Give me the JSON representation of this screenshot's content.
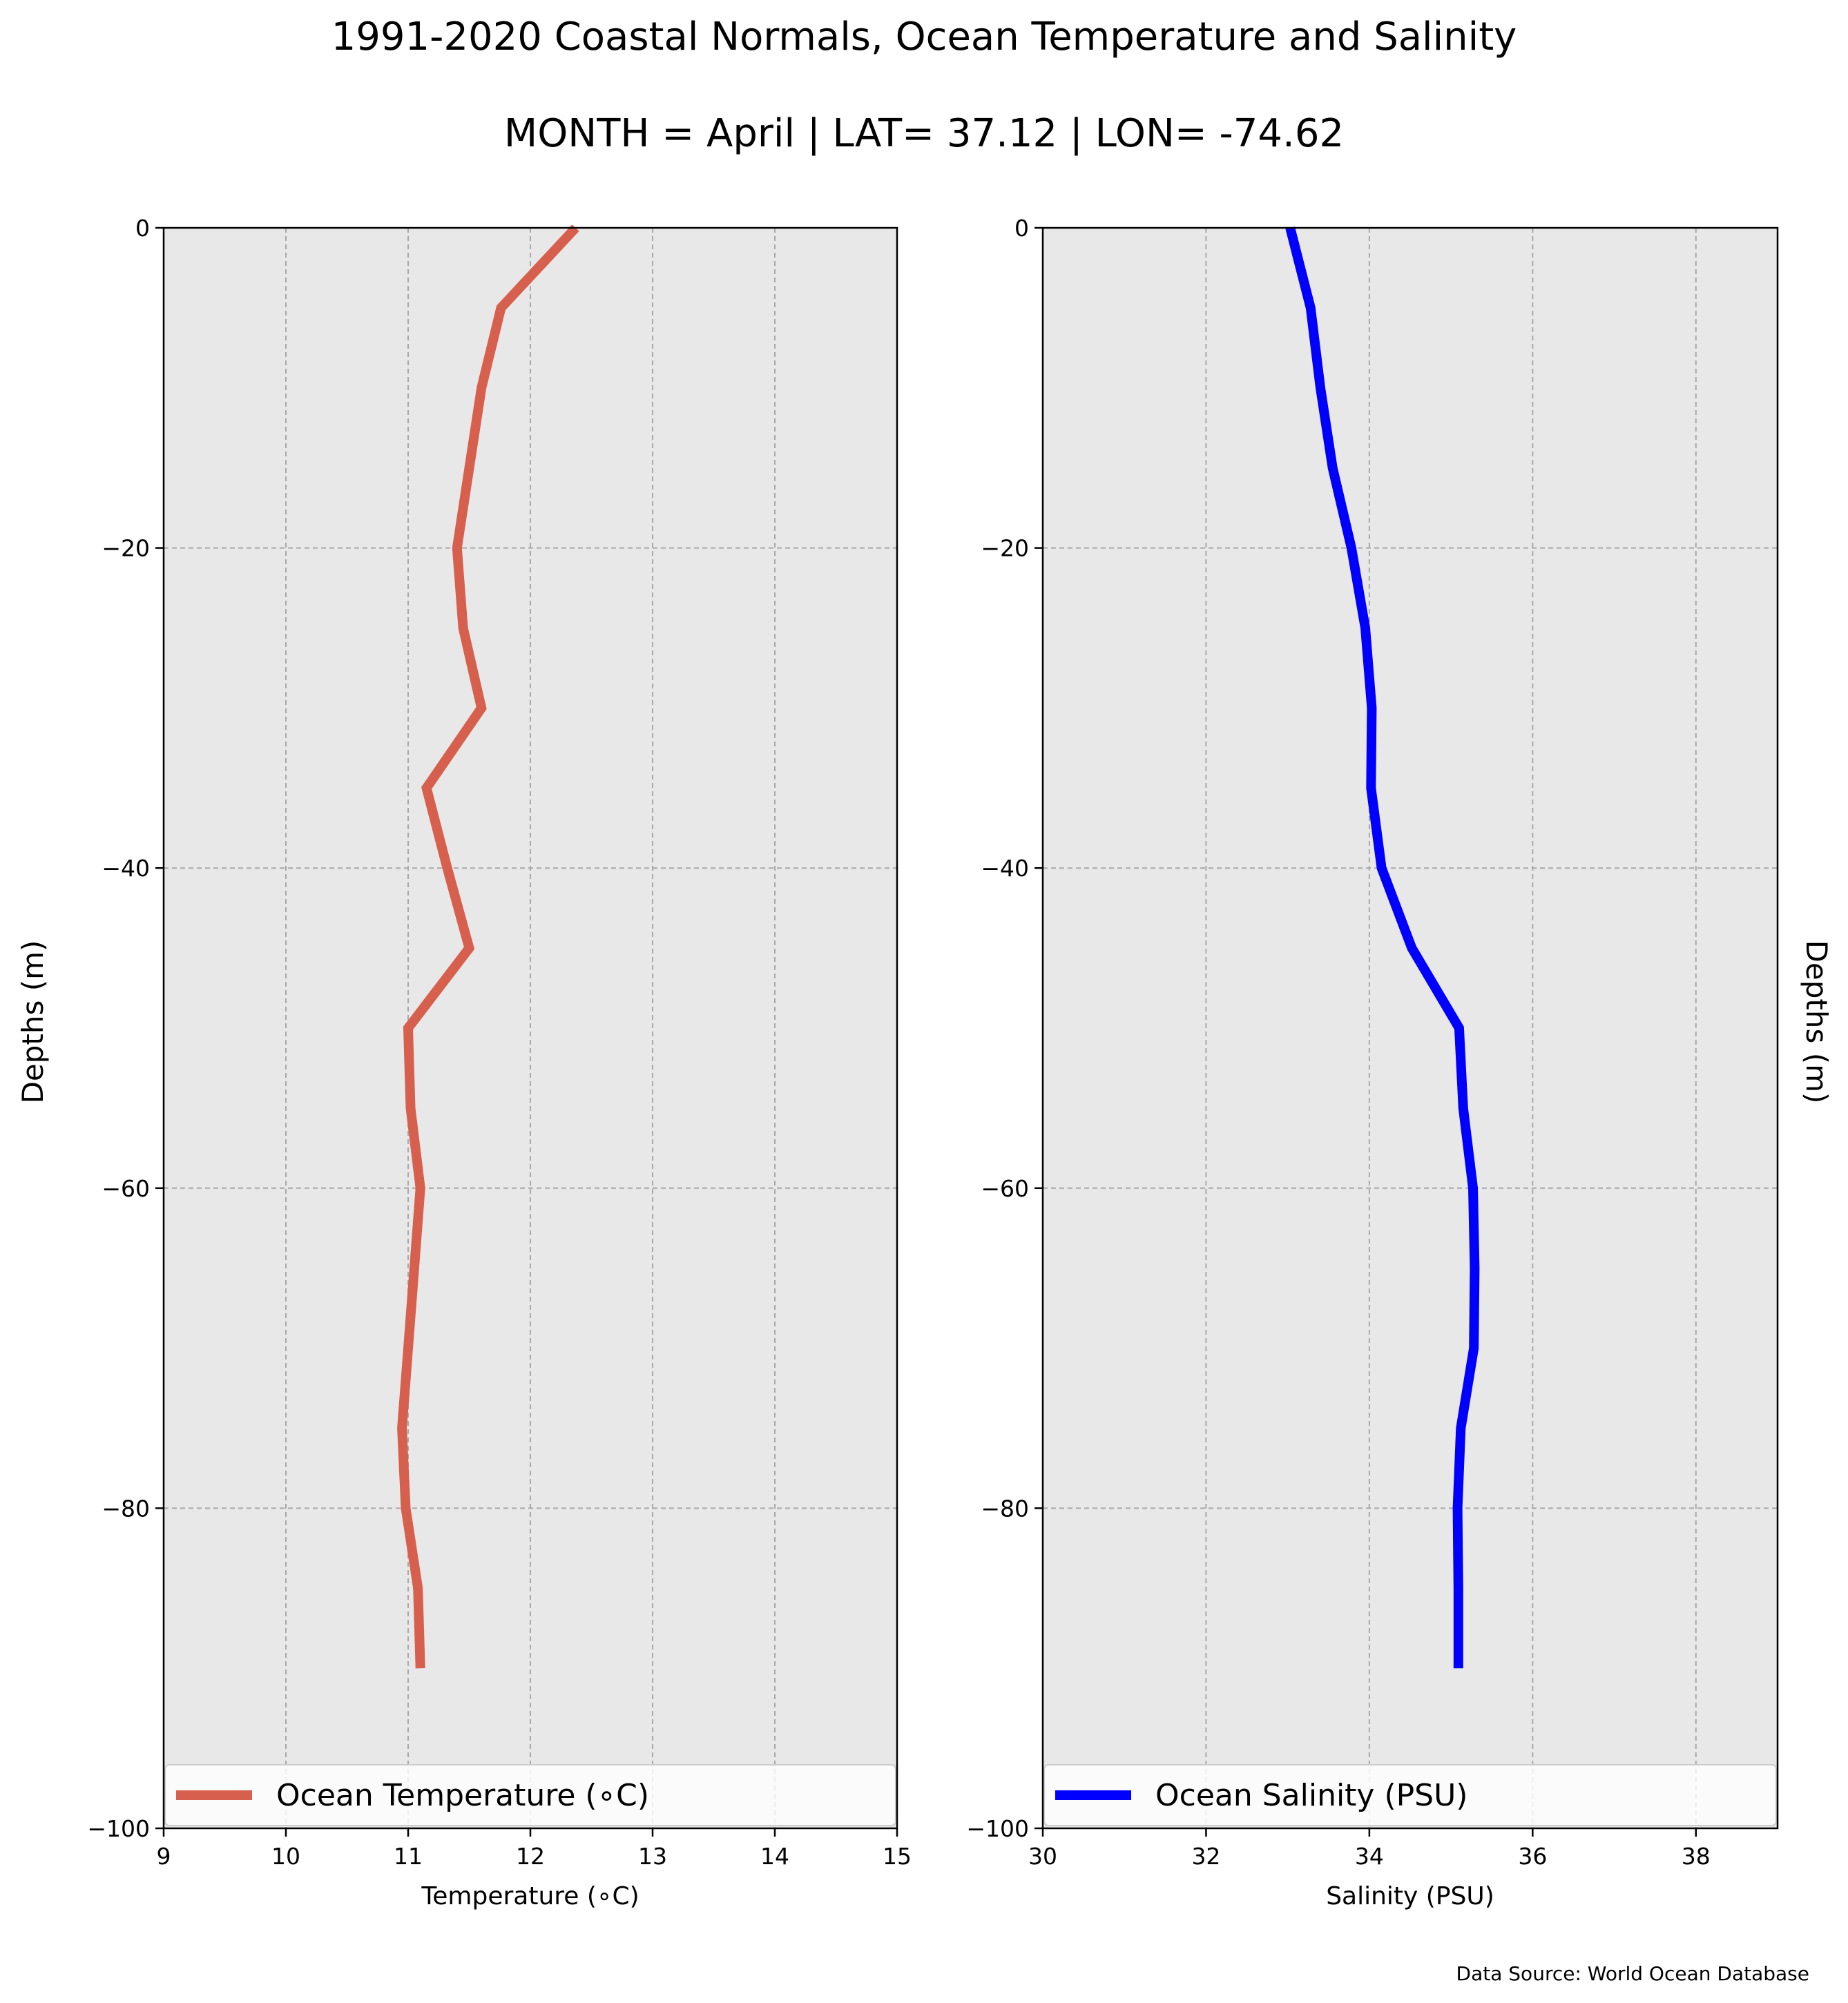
{
  "title": "1991-2020 Coastal Normals, Ocean Temperature and Salinity",
  "subtitle": "MONTH = April | LAT= 37.12 | LON= -74.62",
  "source": "Data Source: World Ocean Database",
  "chart_data": [
    {
      "type": "line",
      "xlabel": "Temperature (∘C)",
      "ylabel": "Depths (m)",
      "xlim": [
        9,
        15
      ],
      "ylim": [
        -100,
        0
      ],
      "xticks": [
        9,
        10,
        11,
        12,
        13,
        14,
        15
      ],
      "yticks": [
        0,
        -20,
        -40,
        -60,
        -80,
        -100
      ],
      "grid": true,
      "legend_position": "lower center",
      "series": [
        {
          "name": "Ocean Temperature (∘C)",
          "color": "#d6604d",
          "x": [
            12.37,
            11.76,
            11.6,
            11.5,
            11.4,
            11.45,
            11.6,
            11.15,
            11.32,
            11.5,
            11.0,
            11.02,
            11.1,
            11.05,
            11.0,
            10.95,
            10.98,
            11.08,
            11.1
          ],
          "y": [
            0,
            -5,
            -10,
            -15,
            -20,
            -25,
            -30,
            -35,
            -40,
            -45,
            -50,
            -55,
            -60,
            -65,
            -70,
            -75,
            -80,
            -85,
            -90
          ]
        }
      ]
    },
    {
      "type": "line",
      "xlabel": "Salinity (PSU)",
      "ylabel": "Depths (m)",
      "xlim": [
        30,
        39
      ],
      "ylim": [
        -100,
        0
      ],
      "xticks": [
        30,
        32,
        34,
        36,
        38
      ],
      "yticks": [
        0,
        -20,
        -40,
        -60,
        -80,
        -100
      ],
      "grid": true,
      "legend_position": "lower center",
      "series": [
        {
          "name": "Ocean Salinity (PSU)",
          "color": "#0000ff",
          "x": [
            33.03,
            33.28,
            33.4,
            33.55,
            33.78,
            33.95,
            34.03,
            34.02,
            34.15,
            34.52,
            35.1,
            35.15,
            35.27,
            35.29,
            35.28,
            35.12,
            35.08,
            35.09,
            35.09
          ],
          "y": [
            0,
            -5,
            -10,
            -15,
            -20,
            -25,
            -30,
            -35,
            -40,
            -45,
            -50,
            -55,
            -60,
            -65,
            -70,
            -75,
            -80,
            -85,
            -90
          ]
        }
      ]
    }
  ]
}
